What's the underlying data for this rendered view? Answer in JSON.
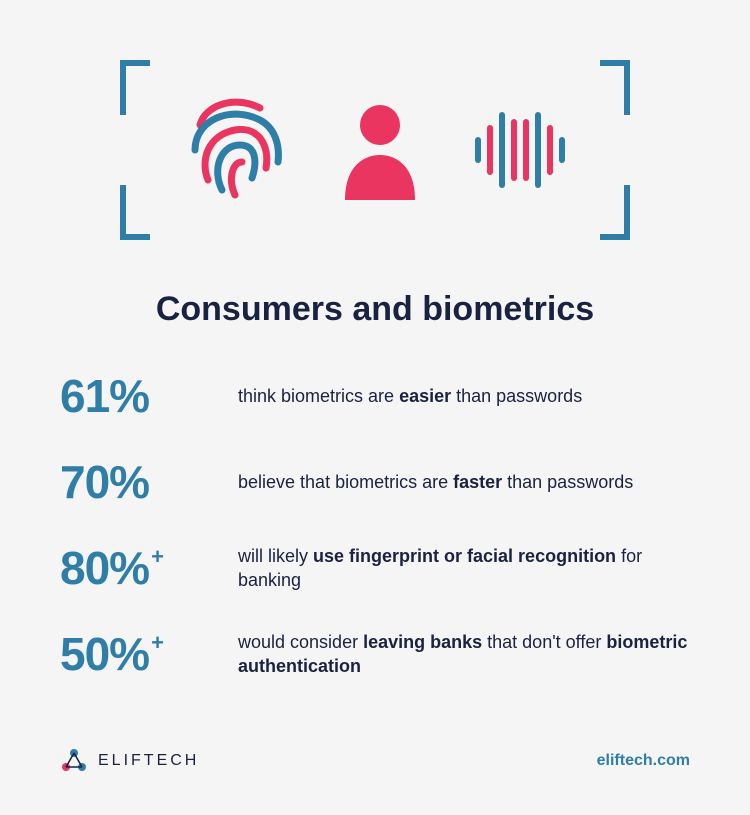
{
  "colors": {
    "background": "#f5f5f5",
    "blue": "#2f7ea8",
    "pink": "#e9355f",
    "navy": "#1a2242"
  },
  "title": "Consumers and biometrics",
  "stats": [
    {
      "pct": "61%",
      "plus": "",
      "html": "think biometrics are <b>easier</b> than passwords"
    },
    {
      "pct": "70%",
      "plus": "",
      "html": "believe that biometrics are <b>faster</b> than passwords"
    },
    {
      "pct": "80%",
      "plus": "+",
      "html": "will likely <b>use fingerprint or facial recognition</b> for banking"
    },
    {
      "pct": "50%",
      "plus": "+",
      "html": "would consider <b>leaving banks</b> that don't offer <b>biometric authentication</b>"
    }
  ],
  "brand": "ELIFTECH",
  "site": "eliftech.com"
}
